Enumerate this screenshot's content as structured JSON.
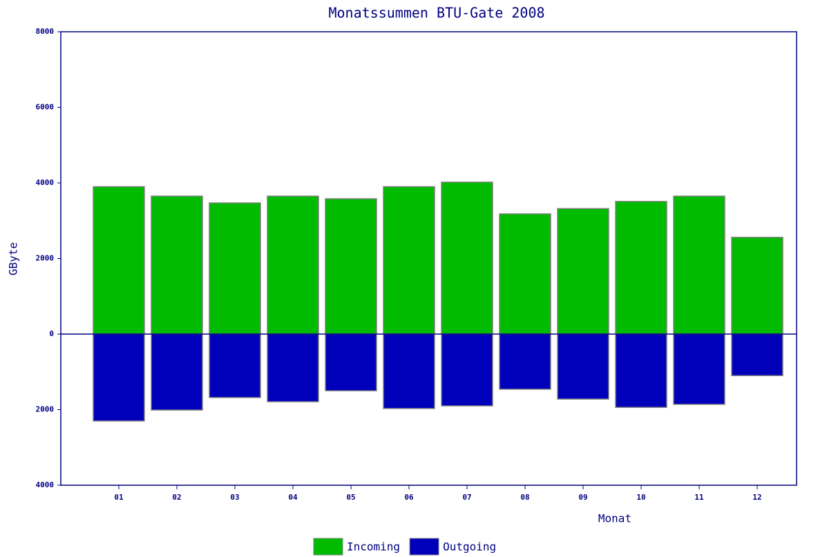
{
  "chart_data": {
    "type": "bar",
    "title": "Monatssummen BTU-Gate 2008",
    "x_label": "Monat",
    "y_label": "GByte",
    "categories": [
      "01",
      "02",
      "03",
      "04",
      "05",
      "06",
      "07",
      "08",
      "09",
      "10",
      "11",
      "12"
    ],
    "series": [
      {
        "name": "Incoming",
        "color": "#00bb00",
        "values": [
          3900,
          3650,
          3470,
          3650,
          3580,
          3900,
          4020,
          3180,
          3320,
          3510,
          3650,
          2560
        ]
      },
      {
        "name": "Outgoing",
        "color": "#0000bb",
        "values": [
          -2300,
          -2010,
          -1680,
          -1790,
          -1500,
          -1970,
          -1900,
          -1460,
          -1720,
          -1940,
          -1860,
          -1100
        ]
      }
    ],
    "ylim": [
      -4000,
      8000
    ],
    "yticks": [
      {
        "value": -4000,
        "label": "4000"
      },
      {
        "value": -2000,
        "label": "2000"
      },
      0,
      2000,
      4000,
      6000,
      8000
    ],
    "legend": "bottom"
  }
}
